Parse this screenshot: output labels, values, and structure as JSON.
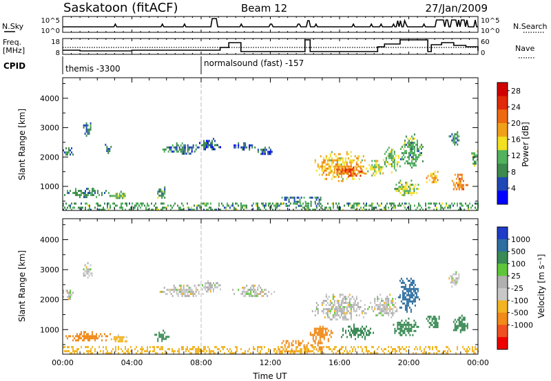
{
  "header": {
    "station": "Saskatoon (fitACF)",
    "beam": "Beam 12",
    "date": "27/Jan/2009"
  },
  "params": {
    "nsky_label": "N.Sky",
    "nsky_ticks": [
      "10^5",
      "10^0"
    ],
    "nsearch_label": "N.Search",
    "nsearch_ticks": [
      "10^5",
      "10^0"
    ],
    "freq_label_1": "Freq.",
    "freq_label_2": "[MHz]",
    "freq_ticks": [
      "18",
      "8"
    ],
    "nave_label": "Nave",
    "nave_ticks": [
      "60",
      "0"
    ],
    "cpid_label": "CPID",
    "cpid_entries": [
      {
        "text": "themis -3300"
      },
      {
        "text": "normalsound (fast) -157"
      }
    ]
  },
  "colors": {
    "power": [
      "#0000ff",
      "#1f47b5",
      "#3e8a4e",
      "#52b25e",
      "#f2e021",
      "#f0a019",
      "#ee6a12",
      "#e02a0a",
      "#d10000"
    ],
    "velocity": [
      "#ee0000",
      "#f05020",
      "#f08a1a",
      "#f2b422",
      "#c8c8c8",
      "#b0b0b0",
      "#5fc63a",
      "#3a8a55",
      "#2e6ea0",
      "#1e3cc8"
    ]
  },
  "chart_data": [
    {
      "type": "heatmap",
      "name": "power",
      "xlabel": "",
      "ylabel": "Slant Range [km]",
      "x_ticks": [
        "00:00",
        "04:00",
        "08:00",
        "12:00",
        "16:00",
        "20:00",
        "00:00"
      ],
      "x_range_hours": [
        0,
        24
      ],
      "y_ticks": [
        1000,
        2000,
        3000,
        4000
      ],
      "y_range_km": [
        180,
        4700
      ],
      "colorbar": {
        "label": "Power [dB]",
        "ticks": [
          "4",
          "8",
          "12",
          "16",
          "20",
          "24",
          "28"
        ],
        "range": [
          0,
          30
        ]
      },
      "scatter_regions": [
        {
          "t": [
            0.0,
            0.6
          ],
          "r": [
            2000,
            2400
          ],
          "value": 7
        },
        {
          "t": [
            1.1,
            1.7
          ],
          "r": [
            2700,
            3250
          ],
          "value": 7
        },
        {
          "t": [
            0.0,
            2.8
          ],
          "r": [
            650,
            950
          ],
          "value": 9
        },
        {
          "t": [
            2.7,
            3.8
          ],
          "r": [
            600,
            850
          ],
          "value": 11
        },
        {
          "t": [
            2.2,
            2.9
          ],
          "r": [
            2150,
            2450
          ],
          "value": 7
        },
        {
          "t": [
            5.6,
            8.1
          ],
          "r": [
            2100,
            2500
          ],
          "value": 7
        },
        {
          "t": [
            5.3,
            6.1
          ],
          "r": [
            600,
            1000
          ],
          "value": 10
        },
        {
          "t": [
            7.8,
            9.1
          ],
          "r": [
            2250,
            2650
          ],
          "value": 6
        },
        {
          "t": [
            9.8,
            11.1
          ],
          "r": [
            2250,
            2500
          ],
          "value": 6
        },
        {
          "t": [
            11.1,
            12.3
          ],
          "r": [
            2100,
            2350
          ],
          "value": 6
        },
        {
          "t": [
            12.4,
            15.0
          ],
          "r": [
            300,
            650
          ],
          "value": 8
        },
        {
          "t": [
            14.4,
            17.6
          ],
          "r": [
            1200,
            2200
          ],
          "value": 17
        },
        {
          "t": [
            15.5,
            17.5
          ],
          "r": [
            1350,
            1750
          ],
          "value": 22
        },
        {
          "t": [
            17.6,
            18.6
          ],
          "r": [
            1400,
            1900
          ],
          "value": 14
        },
        {
          "t": [
            18.5,
            19.5
          ],
          "r": [
            1500,
            2350
          ],
          "value": 12
        },
        {
          "t": [
            19.0,
            20.6
          ],
          "r": [
            700,
            1300
          ],
          "value": 13
        },
        {
          "t": [
            19.5,
            20.8
          ],
          "r": [
            1600,
            2800
          ],
          "value": 10
        },
        {
          "t": [
            21.0,
            21.7
          ],
          "r": [
            1000,
            1600
          ],
          "value": 18
        },
        {
          "t": [
            22.4,
            23.4
          ],
          "r": [
            900,
            1500
          ],
          "value": 20
        },
        {
          "t": [
            22.3,
            22.9
          ],
          "r": [
            2450,
            2950
          ],
          "value": 9
        },
        {
          "t": [
            23.6,
            24.0
          ],
          "r": [
            1700,
            2300
          ],
          "value": 12
        },
        {
          "t": [
            0.0,
            24.0
          ],
          "r": [
            180,
            450
          ],
          "value": 10
        }
      ]
    },
    {
      "type": "heatmap",
      "name": "velocity",
      "xlabel": "Time UT",
      "ylabel": "Slant Range [km]",
      "x_ticks": [
        "00:00",
        "04:00",
        "08:00",
        "12:00",
        "16:00",
        "20:00",
        "00:00"
      ],
      "x_range_hours": [
        0,
        24
      ],
      "y_ticks": [
        1000,
        2000,
        3000,
        4000
      ],
      "y_range_km": [
        180,
        4700
      ],
      "colorbar": {
        "label": "Velocity [m s⁻¹]",
        "ticks": [
          "1000",
          "500",
          "100",
          "25",
          "-25",
          "-100",
          "-500",
          "-1000"
        ]
      },
      "scatter_regions": [
        {
          "t": [
            0.0,
            0.6
          ],
          "r": [
            2000,
            2400
          ],
          "value": 0
        },
        {
          "t": [
            1.1,
            1.7
          ],
          "r": [
            2700,
            3250
          ],
          "value": 0
        },
        {
          "t": [
            0.0,
            2.8
          ],
          "r": [
            650,
            950
          ],
          "value": -150
        },
        {
          "t": [
            2.7,
            3.8
          ],
          "r": [
            600,
            850
          ],
          "value": -50
        },
        {
          "t": [
            5.6,
            8.1
          ],
          "r": [
            2100,
            2500
          ],
          "value": 0
        },
        {
          "t": [
            5.3,
            6.1
          ],
          "r": [
            600,
            1000
          ],
          "value": 200
        },
        {
          "t": [
            7.8,
            9.1
          ],
          "r": [
            2250,
            2650
          ],
          "value": 0
        },
        {
          "t": [
            9.8,
            12.3
          ],
          "r": [
            2100,
            2500
          ],
          "value": 0
        },
        {
          "t": [
            12.4,
            15.0
          ],
          "r": [
            300,
            650
          ],
          "value": -150
        },
        {
          "t": [
            14.2,
            15.6
          ],
          "r": [
            600,
            1200
          ],
          "value": -150
        },
        {
          "t": [
            14.4,
            17.6
          ],
          "r": [
            1300,
            2200
          ],
          "value": 0
        },
        {
          "t": [
            17.6,
            19.5
          ],
          "r": [
            1400,
            2200
          ],
          "value": 0
        },
        {
          "t": [
            16.0,
            18.0
          ],
          "r": [
            700,
            1200
          ],
          "value": 300
        },
        {
          "t": [
            19.3,
            20.6
          ],
          "r": [
            1600,
            2800
          ],
          "value": 600
        },
        {
          "t": [
            19.0,
            20.6
          ],
          "r": [
            800,
            1400
          ],
          "value": 300
        },
        {
          "t": [
            21.0,
            21.8
          ],
          "r": [
            1000,
            1600
          ],
          "value": 200
        },
        {
          "t": [
            22.4,
            23.4
          ],
          "r": [
            900,
            1500
          ],
          "value": 200
        },
        {
          "t": [
            22.3,
            22.9
          ],
          "r": [
            2450,
            2950
          ],
          "value": 0
        },
        {
          "t": [
            0.0,
            24.0
          ],
          "r": [
            180,
            450
          ],
          "value": -60
        }
      ]
    }
  ]
}
